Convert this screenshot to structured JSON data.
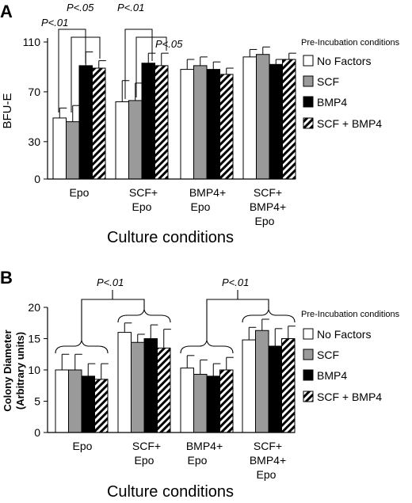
{
  "patterns": {
    "No Factors": "white",
    "SCF": "gray",
    "BMP4": "black",
    "SCF + BMP4": "hatch"
  },
  "colors": {
    "gray": "#9a9a9a",
    "black": "#000000",
    "white": "#ffffff"
  },
  "chart_data": [
    {
      "type": "bar",
      "panel_label": "A",
      "title": "",
      "ylabel": "BFU-E",
      "xlabel": "Culture conditions",
      "ylim": [
        0,
        110
      ],
      "yticks": [
        "0",
        "30",
        "70",
        "110"
      ],
      "legend_title": "Pre-Incubation conditions",
      "legend_position": "right",
      "categories": [
        "Epo",
        "SCF+\nEpo",
        "BMP4+\nEpo",
        "SCF+\nBMP4+\nEpo"
      ],
      "series": [
        {
          "name": "No Factors",
          "values": [
            49,
            62,
            88,
            98
          ],
          "errors": [
            8,
            17,
            8,
            6
          ]
        },
        {
          "name": "SCF",
          "values": [
            46,
            63,
            91,
            100
          ],
          "errors": [
            13,
            14,
            7,
            6
          ]
        },
        {
          "name": "BMP4",
          "values": [
            91,
            93,
            88,
            92
          ],
          "errors": [
            11,
            8,
            6,
            4
          ]
        },
        {
          "name": "SCF + BMP4",
          "values": [
            89,
            91,
            84,
            96
          ],
          "errors": [
            6,
            10,
            5,
            5
          ]
        }
      ],
      "annotations": [
        "P<.01",
        "P<.05",
        "P<.01",
        "P<.05"
      ]
    },
    {
      "type": "bar",
      "panel_label": "B",
      "title": "",
      "ylabel": "Colony Diameter\n(Arbitrary units)",
      "xlabel": "Culture conditions",
      "ylim": [
        0,
        20
      ],
      "yticks": [
        "0",
        "5",
        "10",
        "15",
        "20"
      ],
      "legend_title": "Pre-Incubation conditions",
      "legend_position": "right",
      "categories": [
        "Epo",
        "SCF+\nEpo",
        "BMP4+\nEpo",
        "SCF+\nBMP4+\nEpo"
      ],
      "series": [
        {
          "name": "No Factors",
          "values": [
            10,
            16,
            10.3,
            14.8
          ],
          "errors": [
            2.5,
            1.5,
            2,
            2
          ]
        },
        {
          "name": "SCF",
          "values": [
            10,
            14.4,
            9.3,
            16.3
          ],
          "errors": [
            2.5,
            1.3,
            2.3,
            1.8
          ]
        },
        {
          "name": "BMP4",
          "values": [
            9,
            15,
            9,
            13.8
          ],
          "errors": [
            2,
            2.2,
            2,
            2.8
          ]
        },
        {
          "name": "SCF + BMP4",
          "values": [
            8.5,
            13.5,
            10,
            15
          ],
          "errors": [
            2.5,
            3,
            2,
            2
          ]
        }
      ],
      "annotations": [
        "P<.01",
        "P<.01"
      ]
    }
  ]
}
